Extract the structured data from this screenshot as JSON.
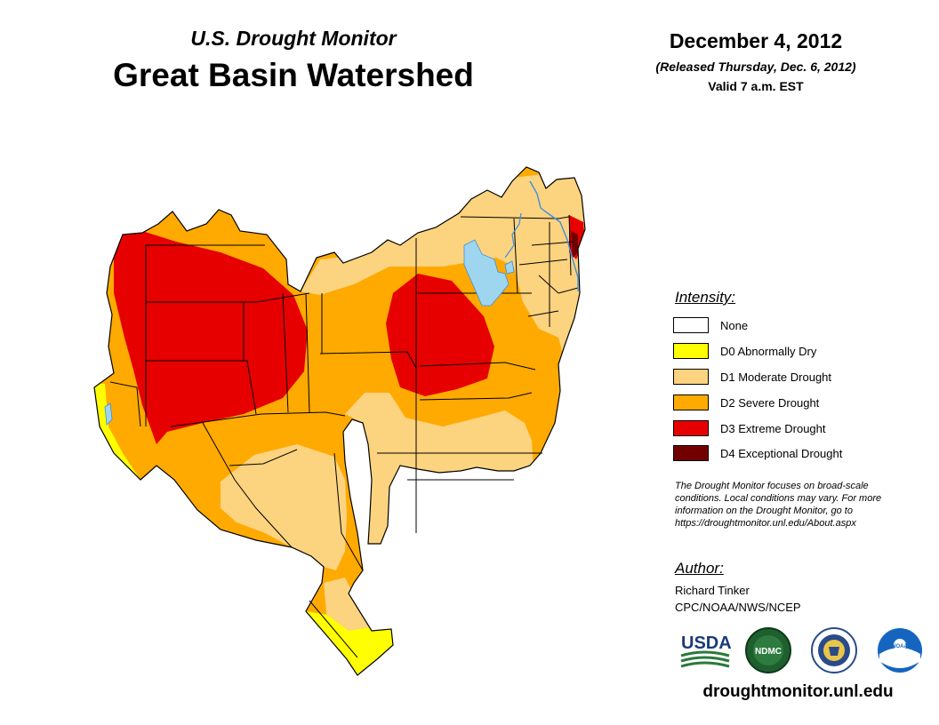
{
  "header": {
    "subtitle": "U.S. Drought Monitor",
    "title": "Great Basin Watershed",
    "date": "December 4, 2012",
    "released": "(Released Thursday, Dec. 6, 2012)",
    "valid": "Valid 7 a.m. EST"
  },
  "legend": {
    "title": "Intensity:",
    "items": [
      {
        "label": "None",
        "color": "#ffffff"
      },
      {
        "label": "D0 Abnormally Dry",
        "color": "#ffff00"
      },
      {
        "label": "D1 Moderate Drought",
        "color": "#fcd37f"
      },
      {
        "label": "D2 Severe Drought",
        "color": "#ffaa00"
      },
      {
        "label": "D3 Extreme Drought",
        "color": "#e60000"
      },
      {
        "label": "D4 Exceptional Drought",
        "color": "#730000"
      }
    ]
  },
  "note": {
    "line1": "The Drought Monitor focuses on broad-scale",
    "line2": "conditions. Local conditions may vary. For more",
    "line3": "information on the Drought Monitor, go to",
    "line4": "https://droughtmonitor.unl.edu/About.aspx"
  },
  "author": {
    "title": "Author:",
    "name": "Richard Tinker",
    "org": "CPC/NOAA/NWS/NCEP"
  },
  "logos": {
    "usda": "USDA",
    "ndmc": "NDMC",
    "noaa": "NOAA"
  },
  "colors": {
    "water": "#9ed5ef",
    "river": "#3d8fe0",
    "border": "#000000"
  },
  "footer": {
    "site": "droughtmonitor.unl.edu"
  }
}
